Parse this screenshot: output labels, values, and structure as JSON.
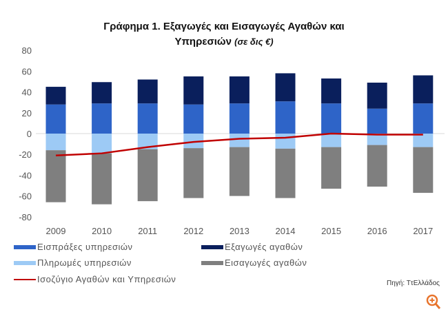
{
  "chart_data": {
    "type": "bar",
    "stacked": true,
    "title_line1": "Γράφημα 1. Εξαγωγές και Εισαγωγές Αγαθών και",
    "title_line2": "Υπηρεσιών",
    "title_unit": "(σε δις €)",
    "categories": [
      "2009",
      "2010",
      "2011",
      "2012",
      "2013",
      "2014",
      "2015",
      "2016",
      "2017"
    ],
    "ylim": [
      -80,
      80
    ],
    "yticks": [
      "80",
      "60",
      "40",
      "20",
      "0",
      "-20",
      "-40",
      "-60",
      "-80"
    ],
    "ytick_values": [
      80,
      60,
      40,
      20,
      0,
      -20,
      -40,
      -60,
      -80
    ],
    "series": [
      {
        "name": "Εισπράξες υπηρεσιών",
        "color": "#2e64c8",
        "values": [
          28,
          29,
          29,
          28,
          29,
          31,
          29,
          24,
          29
        ]
      },
      {
        "name": "Εξαγωγές αγαθών",
        "color": "#0a1f5c",
        "values": [
          17,
          20.5,
          23,
          27,
          26,
          27,
          24,
          25,
          27
        ]
      },
      {
        "name": "Πληρωμές υπηρεσιών",
        "color": "#9dcaf5",
        "values": [
          -16,
          -19,
          -15,
          -14,
          -13,
          -14.5,
          -13,
          -11,
          -13
        ]
      },
      {
        "name": "Εισαγωγές αγαθών",
        "color": "#7f7f7f",
        "values": [
          -50,
          -49,
          -50,
          -48,
          -47,
          -47.5,
          -40,
          -40,
          -44
        ]
      },
      {
        "name": "Ισοζύγιο Αγαθών και Υπηρεσιών",
        "type": "line",
        "color": "#c00000",
        "values": [
          -21,
          -19,
          -13,
          -8,
          -5,
          -4,
          0,
          -1,
          -1
        ]
      }
    ],
    "source": "Πηγή: ΤτΕλλάδος",
    "legend": "bottom"
  }
}
